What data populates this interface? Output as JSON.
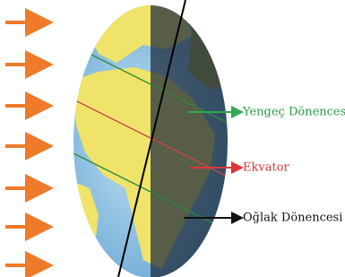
{
  "labels": {
    "tropic_of_cancer": "Yengeç Dönencesi",
    "equator": "Ekvator",
    "tropic_of_capricorn": "Oğlak Dönencesi"
  }
}
